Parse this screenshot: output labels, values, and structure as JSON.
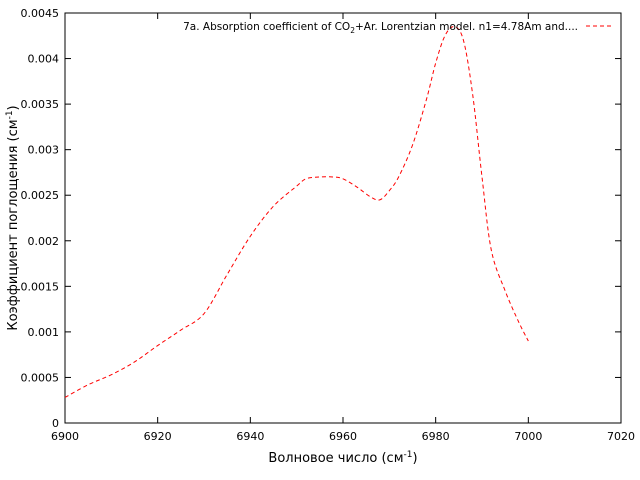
{
  "chart_data": {
    "type": "line",
    "xlabel": {
      "main": "Волновое число (см",
      "sup": "-1",
      "tail": ")"
    },
    "ylabel": {
      "main": "Коэффициент поглощения (см",
      "sup": "-1",
      "tail": ")"
    },
    "xlim": [
      6900,
      7020
    ],
    "ylim": [
      0,
      0.0045
    ],
    "x_ticks": [
      6900,
      6920,
      6940,
      6960,
      6980,
      7000,
      7020
    ],
    "y_ticks": [
      0,
      0.0005,
      0.001,
      0.0015,
      0.002,
      0.0025,
      0.003,
      0.0035,
      0.004,
      0.0045
    ],
    "x_tick_labels": [
      "6900",
      "6920",
      "6940",
      "6960",
      "6980",
      "7000",
      "7020"
    ],
    "y_tick_labels": [
      "0",
      "0.0005",
      "0.001",
      "0.0015",
      "0.002",
      "0.0025",
      "0.003",
      "0.0035",
      "0.004",
      "0.0045"
    ],
    "grid": false,
    "legend_position": "top-right",
    "series": [
      {
        "name": {
          "pre": "7a. Absorption coefficient of CO",
          "sub": "2",
          "post": "+Ar. Lorentzian model. n1=4.78Am and...."
        },
        "color": "#ff0000",
        "line_style": "dashed",
        "x": [
          6900,
          6905,
          6910,
          6915,
          6920,
          6925,
          6930,
          6935,
          6940,
          6945,
          6950,
          6952,
          6955,
          6958,
          6960,
          6963,
          6966,
          6968,
          6970,
          6972,
          6975,
          6978,
          6980,
          6982,
          6984,
          6986,
          6988,
          6990,
          6992,
          6995,
          6998,
          7000
        ],
        "y": [
          0.00028,
          0.00042,
          0.00053,
          0.00067,
          0.00085,
          0.00102,
          0.0012,
          0.00163,
          0.00205,
          0.00238,
          0.0026,
          0.00268,
          0.0027,
          0.0027,
          0.00268,
          0.00259,
          0.00248,
          0.00245,
          0.00255,
          0.0027,
          0.00305,
          0.00355,
          0.00395,
          0.00425,
          0.00435,
          0.0042,
          0.0036,
          0.0027,
          0.0019,
          0.00145,
          0.0011,
          0.0009
        ]
      }
    ]
  }
}
